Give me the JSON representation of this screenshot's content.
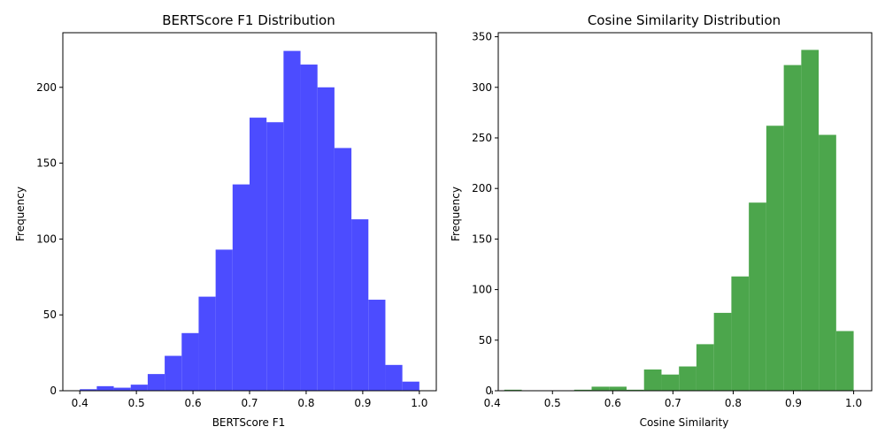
{
  "chart_data": [
    {
      "type": "bar",
      "title": "BERTScore F1 Distribution",
      "xlabel": "BERTScore F1",
      "ylabel": "Frequency",
      "color": "#4c4cff",
      "xlim": [
        0.37,
        1.03
      ],
      "ylim": [
        0,
        236
      ],
      "xticks": [
        0.4,
        0.5,
        0.6,
        0.7,
        0.8,
        0.9,
        1.0
      ],
      "xtick_labels": [
        "0.4",
        "0.5",
        "0.6",
        "0.7",
        "0.8",
        "0.9",
        "1.0"
      ],
      "yticks": [
        0,
        50,
        100,
        150,
        200
      ],
      "ytick_labels": [
        "0",
        "50",
        "100",
        "150",
        "200"
      ],
      "bin_start": 0.4,
      "bin_end": 1.0,
      "values": [
        1,
        3,
        2,
        4,
        11,
        23,
        38,
        62,
        93,
        136,
        180,
        177,
        224,
        215,
        200,
        160,
        113,
        60,
        17,
        6
      ]
    },
    {
      "type": "bar",
      "title": "Cosine Similarity Distribution",
      "xlabel": "Cosine Similarity",
      "ylabel": "Frequency",
      "color": "#4ca64c",
      "xlim": [
        0.41,
        1.03
      ],
      "ylim": [
        0,
        354
      ],
      "xticks": [
        0.4,
        0.5,
        0.6,
        0.7,
        0.8,
        0.9,
        1.0
      ],
      "xtick_labels": [
        "0.4",
        "0.5",
        "0.6",
        "0.7",
        "0.8",
        "0.9",
        "1.0"
      ],
      "yticks": [
        0,
        50,
        100,
        150,
        200,
        250,
        300,
        350
      ],
      "ytick_labels": [
        "0",
        "50",
        "100",
        "150",
        "200",
        "250",
        "300",
        "350"
      ],
      "bin_start": 0.42,
      "bin_end": 1.0,
      "values": [
        1,
        0,
        0,
        0,
        1,
        4,
        4,
        1,
        21,
        16,
        24,
        46,
        77,
        113,
        186,
        262,
        322,
        337,
        253,
        59
      ]
    }
  ]
}
